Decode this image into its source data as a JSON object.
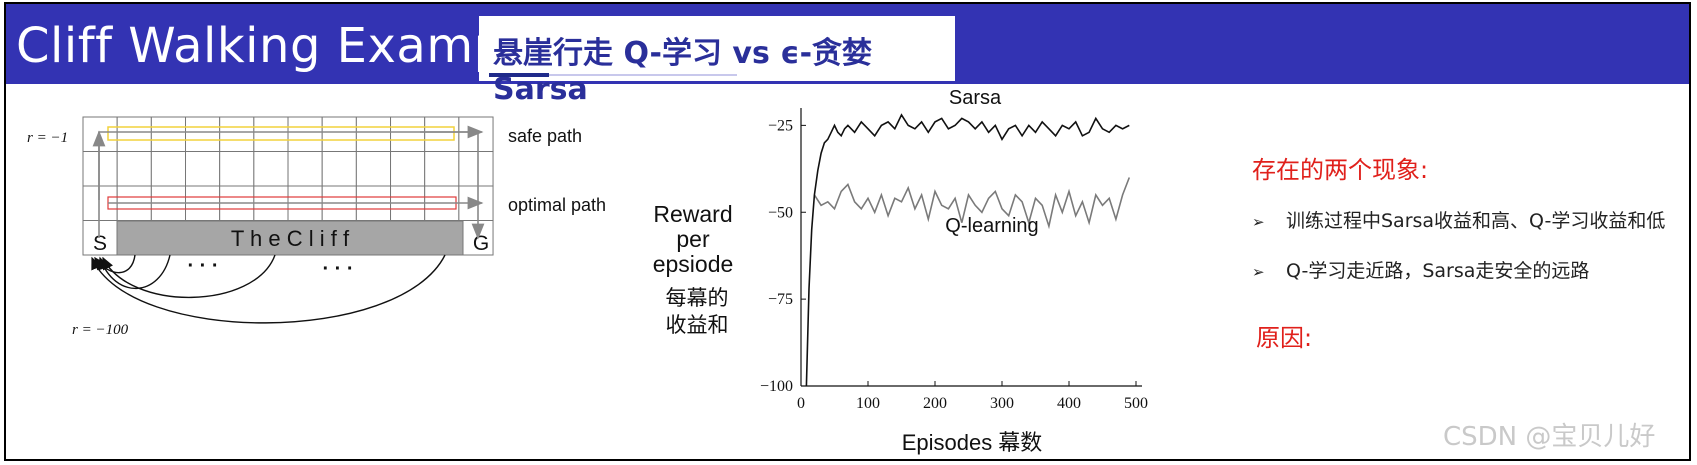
{
  "header": {
    "title": "Cliff Walking Example",
    "subtitle": "悬崖行走 Q-学习 vs ϵ-贪婪Sarsa"
  },
  "gridworld": {
    "reward_step": "r = −1",
    "reward_cliff": "r = −100",
    "start": "S",
    "goal": "G",
    "cliff": "T h e   C l i f f",
    "safe_path": "safe path",
    "optimal_path": "optimal path",
    "dots1": "· · ·",
    "dots2": "· · ·",
    "colors": {
      "safe": "#f2d23c",
      "optimal": "#e03a3a",
      "cliff": "#a6a6a6"
    }
  },
  "chart_data": {
    "type": "line",
    "title": "",
    "xlabel": "Episodes 幕数",
    "ylabel": "Reward per epsiode",
    "ylabel_cn": "每幕的收益和",
    "xlim": [
      0,
      500
    ],
    "ylim": [
      -100,
      -20
    ],
    "x_ticks": [
      "0",
      "100",
      "200",
      "300",
      "400",
      "500"
    ],
    "y_ticks": [
      "−25",
      "−50",
      "−75",
      "−100"
    ],
    "series": [
      {
        "name": "Sarsa",
        "color": "#111111",
        "x": [
          8,
          12,
          16,
          20,
          25,
          30,
          35,
          40,
          45,
          50,
          55,
          60,
          65,
          70,
          80,
          90,
          100,
          110,
          120,
          130,
          140,
          150,
          160,
          170,
          180,
          190,
          200,
          210,
          220,
          230,
          240,
          250,
          260,
          270,
          280,
          290,
          300,
          310,
          320,
          330,
          340,
          350,
          360,
          370,
          380,
          390,
          400,
          410,
          420,
          430,
          440,
          450,
          460,
          470,
          480,
          490
        ],
        "values": [
          -100,
          -72,
          -55,
          -45,
          -38,
          -33,
          -30,
          -29,
          -27,
          -25,
          -27,
          -28,
          -26,
          -25,
          -27,
          -24,
          -26,
          -28,
          -25,
          -24,
          -26,
          -22,
          -25,
          -26,
          -24,
          -27,
          -24,
          -23,
          -26,
          -25,
          -23,
          -24,
          -26,
          -24,
          -27,
          -25,
          -29,
          -26,
          -25,
          -28,
          -25,
          -27,
          -24,
          -26,
          -28,
          -25,
          -26,
          -24,
          -28,
          -27,
          -23,
          -26,
          -27,
          -25,
          -26,
          -25
        ]
      },
      {
        "name": "Q-learning",
        "color": "#7a7a7a",
        "x": [
          20,
          30,
          40,
          50,
          60,
          70,
          80,
          90,
          100,
          110,
          120,
          130,
          140,
          150,
          160,
          170,
          180,
          190,
          200,
          210,
          220,
          230,
          240,
          250,
          260,
          270,
          280,
          290,
          300,
          310,
          320,
          330,
          340,
          350,
          360,
          370,
          380,
          390,
          400,
          410,
          420,
          430,
          440,
          450,
          460,
          470,
          480,
          490
        ],
        "values": [
          -45,
          -48,
          -47,
          -49,
          -44,
          -42,
          -47,
          -49,
          -46,
          -50,
          -45,
          -51,
          -46,
          -47,
          -43,
          -49,
          -45,
          -52,
          -44,
          -48,
          -49,
          -46,
          -53,
          -45,
          -48,
          -50,
          -46,
          -44,
          -49,
          -51,
          -45,
          -47,
          -53,
          -46,
          -48,
          -54,
          -45,
          -50,
          -44,
          -51,
          -47,
          -53,
          -45,
          -48,
          -46,
          -52,
          -45,
          -40
        ]
      }
    ]
  },
  "observations": {
    "title": "存在的两个现象:",
    "items": [
      "训练过程中Sarsa收益和高、Q-学习收益和低",
      "Q-学习走近路，Sarsa走安全的远路"
    ],
    "bullet_marker": "➢",
    "reason": "原因:"
  },
  "watermark": "CSDN @宝贝儿好"
}
